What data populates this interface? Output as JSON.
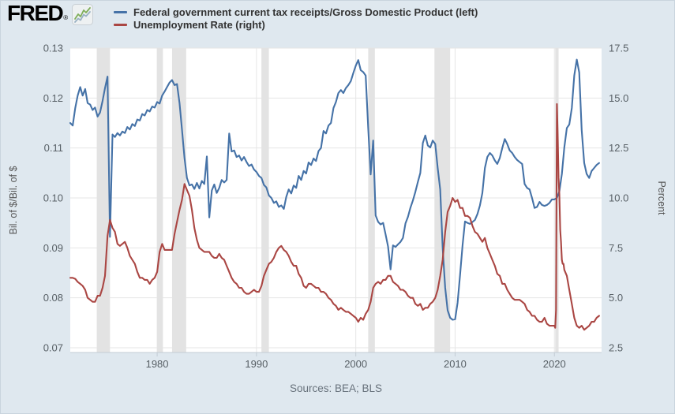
{
  "logo": {
    "text": "FRED",
    "registered": "®"
  },
  "legend": [
    {
      "label": "Federal government current tax receipts/Gross Domestic Product (left)",
      "color": "#4572a7"
    },
    {
      "label": "Unemployment Rate (right)",
      "color": "#aa4643"
    }
  ],
  "footer": {
    "sources": "Sources: BEA; BLS"
  },
  "colors": {
    "background": "#dfe8ef",
    "plot_background": "#ffffff",
    "gridline": "#e6e6e6",
    "recession_band": "#e3e3e3",
    "axis_line": "#c3ccd4",
    "axis_text": "#586066",
    "blue": "#4572a7",
    "red": "#aa4643"
  },
  "chart_data": {
    "type": "line",
    "title": "",
    "x_axis": {
      "range": [
        1971.25,
        2024.75
      ],
      "ticks": [
        1980,
        1990,
        2000,
        2010,
        2020
      ]
    },
    "left_axis": {
      "label": "Bil. of $/Bil. of $",
      "range": [
        0.07,
        0.13
      ],
      "ticks": [
        0.07,
        0.08,
        0.09,
        0.1,
        0.11,
        0.12,
        0.13
      ],
      "decimals": 2
    },
    "right_axis": {
      "label": "Percent",
      "range": [
        2.5,
        17.5
      ],
      "ticks": [
        2.5,
        5.0,
        7.5,
        10.0,
        12.5,
        15.0,
        17.5
      ],
      "decimals": 1
    },
    "grid": true,
    "legend_position": "top-left",
    "recessions": [
      [
        1973.92,
        1975.25
      ],
      [
        1980.0,
        1980.58
      ],
      [
        1981.5,
        1982.92
      ],
      [
        1990.5,
        1991.25
      ],
      [
        2001.25,
        2001.92
      ],
      [
        2007.92,
        2009.5
      ],
      [
        2020.08,
        2020.42
      ]
    ],
    "series": [
      {
        "name": "Federal government current tax receipts/Gross Domestic Product (left)",
        "axis": "left",
        "color": "#4572a7",
        "segments": [
          {
            "x_start": 1971.25,
            "x_step": 0.25,
            "values": [
              0.115,
              0.1145,
              0.118,
              0.1205,
              0.1222,
              0.1205,
              0.1218,
              0.119,
              0.1187,
              0.1176,
              0.1181,
              0.1163,
              0.1171,
              0.1194,
              0.122,
              0.1243,
              0.0922,
              0.1127,
              0.1122,
              0.113,
              0.1125,
              0.1133,
              0.113,
              0.1142,
              0.1137,
              0.1148,
              0.1144,
              0.1157,
              0.1155,
              0.1168,
              0.1165,
              0.1176,
              0.1173,
              0.1183,
              0.1181,
              0.1192,
              0.1189,
              0.1205,
              0.1213,
              0.1222,
              0.1231,
              0.1236,
              0.1226,
              0.1228,
              0.119,
              0.1137,
              0.108,
              0.104,
              0.1025,
              0.1027,
              0.1018,
              0.103,
              0.1019,
              0.1034,
              0.1028,
              0.1083,
              0.0961,
              0.1015,
              0.1027,
              0.101,
              0.102,
              0.1036,
              0.1031,
              0.1036,
              0.1129,
              0.1093,
              0.1095,
              0.1082,
              0.1085,
              0.1075,
              0.1082,
              0.1072,
              0.1064,
              0.1067,
              0.1057,
              0.1052,
              0.1044,
              0.104,
              0.1026,
              0.1021,
              0.1005,
              0.1,
              0.099,
              0.0993,
              0.0982,
              0.0985,
              0.0978,
              0.1002,
              0.1017,
              0.1009,
              0.1025,
              0.102,
              0.1044,
              0.1036,
              0.1054,
              0.1049,
              0.1071,
              0.1066,
              0.1079,
              0.1074,
              0.1094,
              0.11,
              0.1134,
              0.1129,
              0.1145,
              0.115,
              0.118,
              0.1192,
              0.121,
              0.1216,
              0.121,
              0.122,
              0.1226,
              0.1234,
              0.125,
              0.1265,
              0.1276,
              0.1256,
              0.1252,
              0.1245,
              0.114,
              0.1047,
              0.1115,
              0.0965,
              0.0952,
              0.0947,
              0.095,
              0.0927,
              0.0903,
              0.0857,
              0.0905,
              0.0902,
              0.0907,
              0.0912,
              0.092,
              0.0949,
              0.0962,
              0.098,
              0.0995,
              0.1012,
              0.1032,
              0.105,
              0.111,
              0.1125,
              0.1105,
              0.1101,
              0.1115,
              0.1108,
              0.106,
              0.1017,
              0.09,
              0.082,
              0.0775,
              0.076,
              0.0756,
              0.0757,
              0.079,
              0.0845,
              0.0905,
              0.0953,
              0.095,
              0.0948,
              0.0952,
              0.0956,
              0.0968,
              0.0985,
              0.101,
              0.106,
              0.1082,
              0.109,
              0.1085,
              0.1075,
              0.1068,
              0.108,
              0.11,
              0.1118,
              0.1108,
              0.1095,
              0.109,
              0.1082,
              0.1076,
              0.1072,
              0.1068,
              0.1028,
              0.102,
              0.1017,
              0.1,
              0.098,
              0.0982,
              0.0992,
              0.0986,
              0.0984,
              0.0986,
              0.099,
              0.0997,
              0.0997,
              0.1,
              0.1013,
              0.1048,
              0.1101,
              0.114,
              0.1147,
              0.118,
              0.1245,
              0.1277,
              0.1251,
              0.1136,
              0.107,
              0.1048,
              0.104,
              0.1054,
              0.106,
              0.1066,
              0.107
            ]
          }
        ]
      },
      {
        "name": "Unemployment Rate (right)",
        "axis": "right",
        "color": "#aa4643",
        "segments": [
          {
            "x_start": 1971.25,
            "x_step": 0.25,
            "values": [
              6.0,
              6.0,
              5.95,
              5.8,
              5.7,
              5.6,
              5.4,
              5.0,
              4.9,
              4.8,
              4.8,
              5.1,
              5.1,
              5.5,
              6.1,
              8.1,
              8.9,
              8.5,
              8.3,
              7.7,
              7.6,
              7.7,
              7.8,
              7.5,
              7.1,
              6.9,
              6.7,
              6.3,
              6.0,
              6.0,
              5.9,
              5.9,
              5.7,
              5.9,
              6.0,
              6.3,
              7.3,
              7.7,
              7.4,
              7.4,
              7.4,
              7.4,
              8.2,
              8.8,
              9.4,
              9.9,
              10.7,
              10.4,
              10.1,
              9.4,
              8.5,
              7.9,
              7.5,
              7.4,
              7.3,
              7.3,
              7.3,
              7.1,
              7.0,
              7.0,
              7.2,
              7.0,
              6.9,
              6.6,
              6.3,
              6.0,
              5.8,
              5.7,
              5.5,
              5.5,
              5.3,
              5.2,
              5.2,
              5.3,
              5.4,
              5.3,
              5.3,
              5.6,
              6.1,
              6.4,
              6.7,
              6.8,
              7.0,
              7.3,
              7.5,
              7.6,
              7.4,
              7.3,
              7.1,
              6.8,
              6.6,
              6.6,
              6.2,
              6.0,
              5.6,
              5.5,
              5.7,
              5.7,
              5.6,
              5.5,
              5.5,
              5.3,
              5.3,
              5.2,
              5.0,
              4.9,
              4.7,
              4.6,
              4.4,
              4.5,
              4.4,
              4.3,
              4.3,
              4.2,
              4.1,
              4.0,
              3.8,
              4.0,
              3.9,
              4.2,
              4.4,
              4.8,
              5.5,
              5.7,
              5.8,
              5.7,
              5.9,
              5.9,
              6.1,
              6.1,
              5.8,
              5.7,
              5.6,
              5.4,
              5.4,
              5.3,
              5.1,
              5.0,
              5.0,
              4.7,
              4.6,
              4.7,
              4.4,
              4.5,
              4.5,
              4.7,
              4.8,
              5.0,
              5.4,
              6.1,
              6.9,
              8.3,
              9.3,
              9.6,
              10.0,
              9.8,
              9.9,
              9.5,
              9.5,
              9.1,
              9.1,
              9.0,
              8.6,
              8.3,
              8.2,
              8.0,
              7.8,
              8.0,
              7.5,
              7.2,
              6.9,
              6.6,
              6.2,
              6.1,
              5.7,
              5.7,
              5.4,
              5.2,
              5.0,
              4.9,
              4.9,
              4.9,
              4.8,
              4.7,
              4.4,
              4.3,
              4.1,
              4.1,
              3.9,
              3.8,
              3.8,
              4.0,
              3.7,
              3.6,
              3.6
            ]
          },
          {
            "x_start": 2020.0,
            "x_step": 0.08333,
            "values": [
              3.6,
              3.5,
              4.4,
              14.7,
              13.2,
              11.0,
              10.2,
              8.4,
              7.8,
              6.9,
              6.7,
              6.7
            ]
          },
          {
            "x_start": 2021.0,
            "x_step": 0.25,
            "values": [
              6.4,
              6.1,
              5.4,
              4.7,
              4.0,
              3.6,
              3.5,
              3.6,
              3.4,
              3.5,
              3.6,
              3.8,
              3.8,
              4.0,
              4.1
            ]
          }
        ]
      }
    ]
  }
}
